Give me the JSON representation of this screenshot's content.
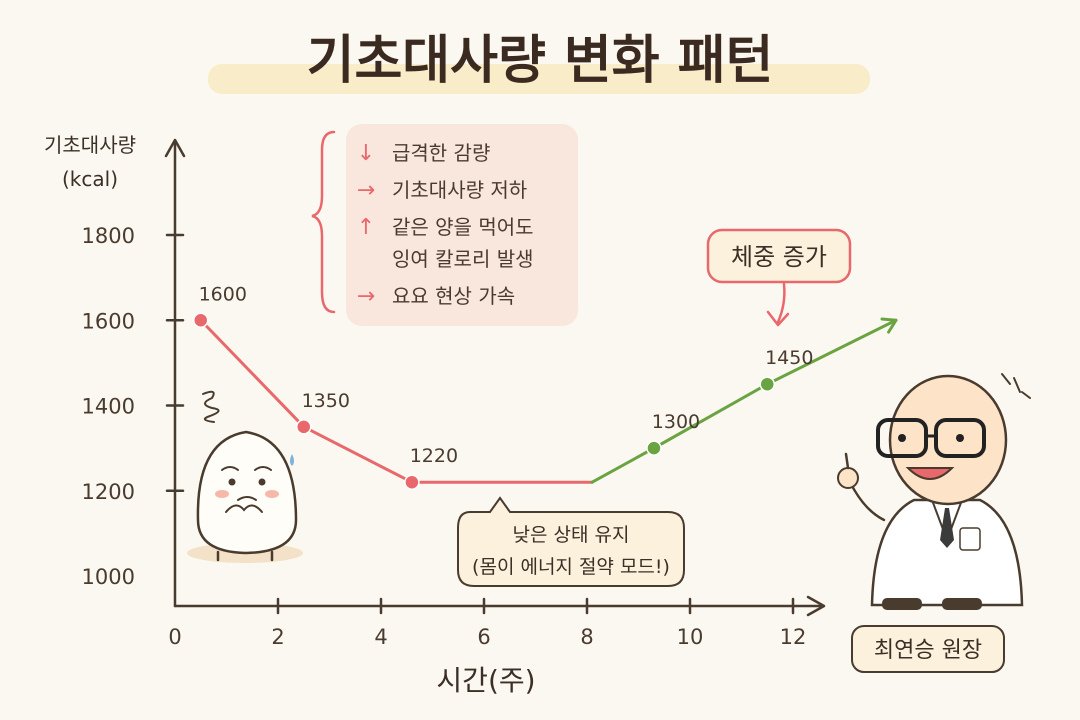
{
  "chart_data": {
    "type": "line",
    "title": "기초대사량 변화 패턴",
    "ylabel": "기초대사량",
    "yunit": "(kcal)",
    "xlabel": "시간(주)",
    "xlim": [
      0,
      12
    ],
    "ylim": [
      1000,
      1800
    ],
    "x_ticks": [
      0,
      2,
      4,
      6,
      8,
      10,
      12
    ],
    "y_ticks": [
      1000,
      1200,
      1400,
      1600,
      1800
    ],
    "grid": false,
    "series": [
      {
        "color": "#e8686c",
        "points": [
          {
            "x": 0.5,
            "y": 1600,
            "label": "1600"
          },
          {
            "x": 2.5,
            "y": 1350,
            "label": "1350"
          },
          {
            "x": 4.6,
            "y": 1220,
            "label": "1220"
          },
          {
            "x": 8.1,
            "y": 1220
          }
        ]
      },
      {
        "color": "#6aa341",
        "points": [
          {
            "x": 8.1,
            "y": 1220
          },
          {
            "x": 9.3,
            "y": 1300,
            "label": "1300"
          },
          {
            "x": 11.5,
            "y": 1450,
            "label": "1450"
          },
          {
            "x": 14.0,
            "y": 1600
          }
        ]
      }
    ],
    "annotations": {
      "effects": [
        {
          "arrow": "↓",
          "text": "급격한 감량"
        },
        {
          "arrow": "→",
          "text": "기초대사량 저하"
        },
        {
          "arrow": "↑",
          "text": "같은 양을 먹어도",
          "text2": "잉여 칼로리 발생"
        },
        {
          "arrow": "→",
          "text": "요요 현상 가속"
        }
      ],
      "weight_gain": "체중 증가",
      "low_state_line1": "낮은 상태 유지",
      "low_state_line2": "(몸이 에너지 절약 모드!)",
      "doctor_name": "최연승 원장"
    },
    "colors": {
      "decline": "#e8686c",
      "increase": "#6aa341",
      "axis": "#4a3b2f",
      "note_bg": "#f9e6dc",
      "speech_bg": "#fbf1dc"
    }
  }
}
